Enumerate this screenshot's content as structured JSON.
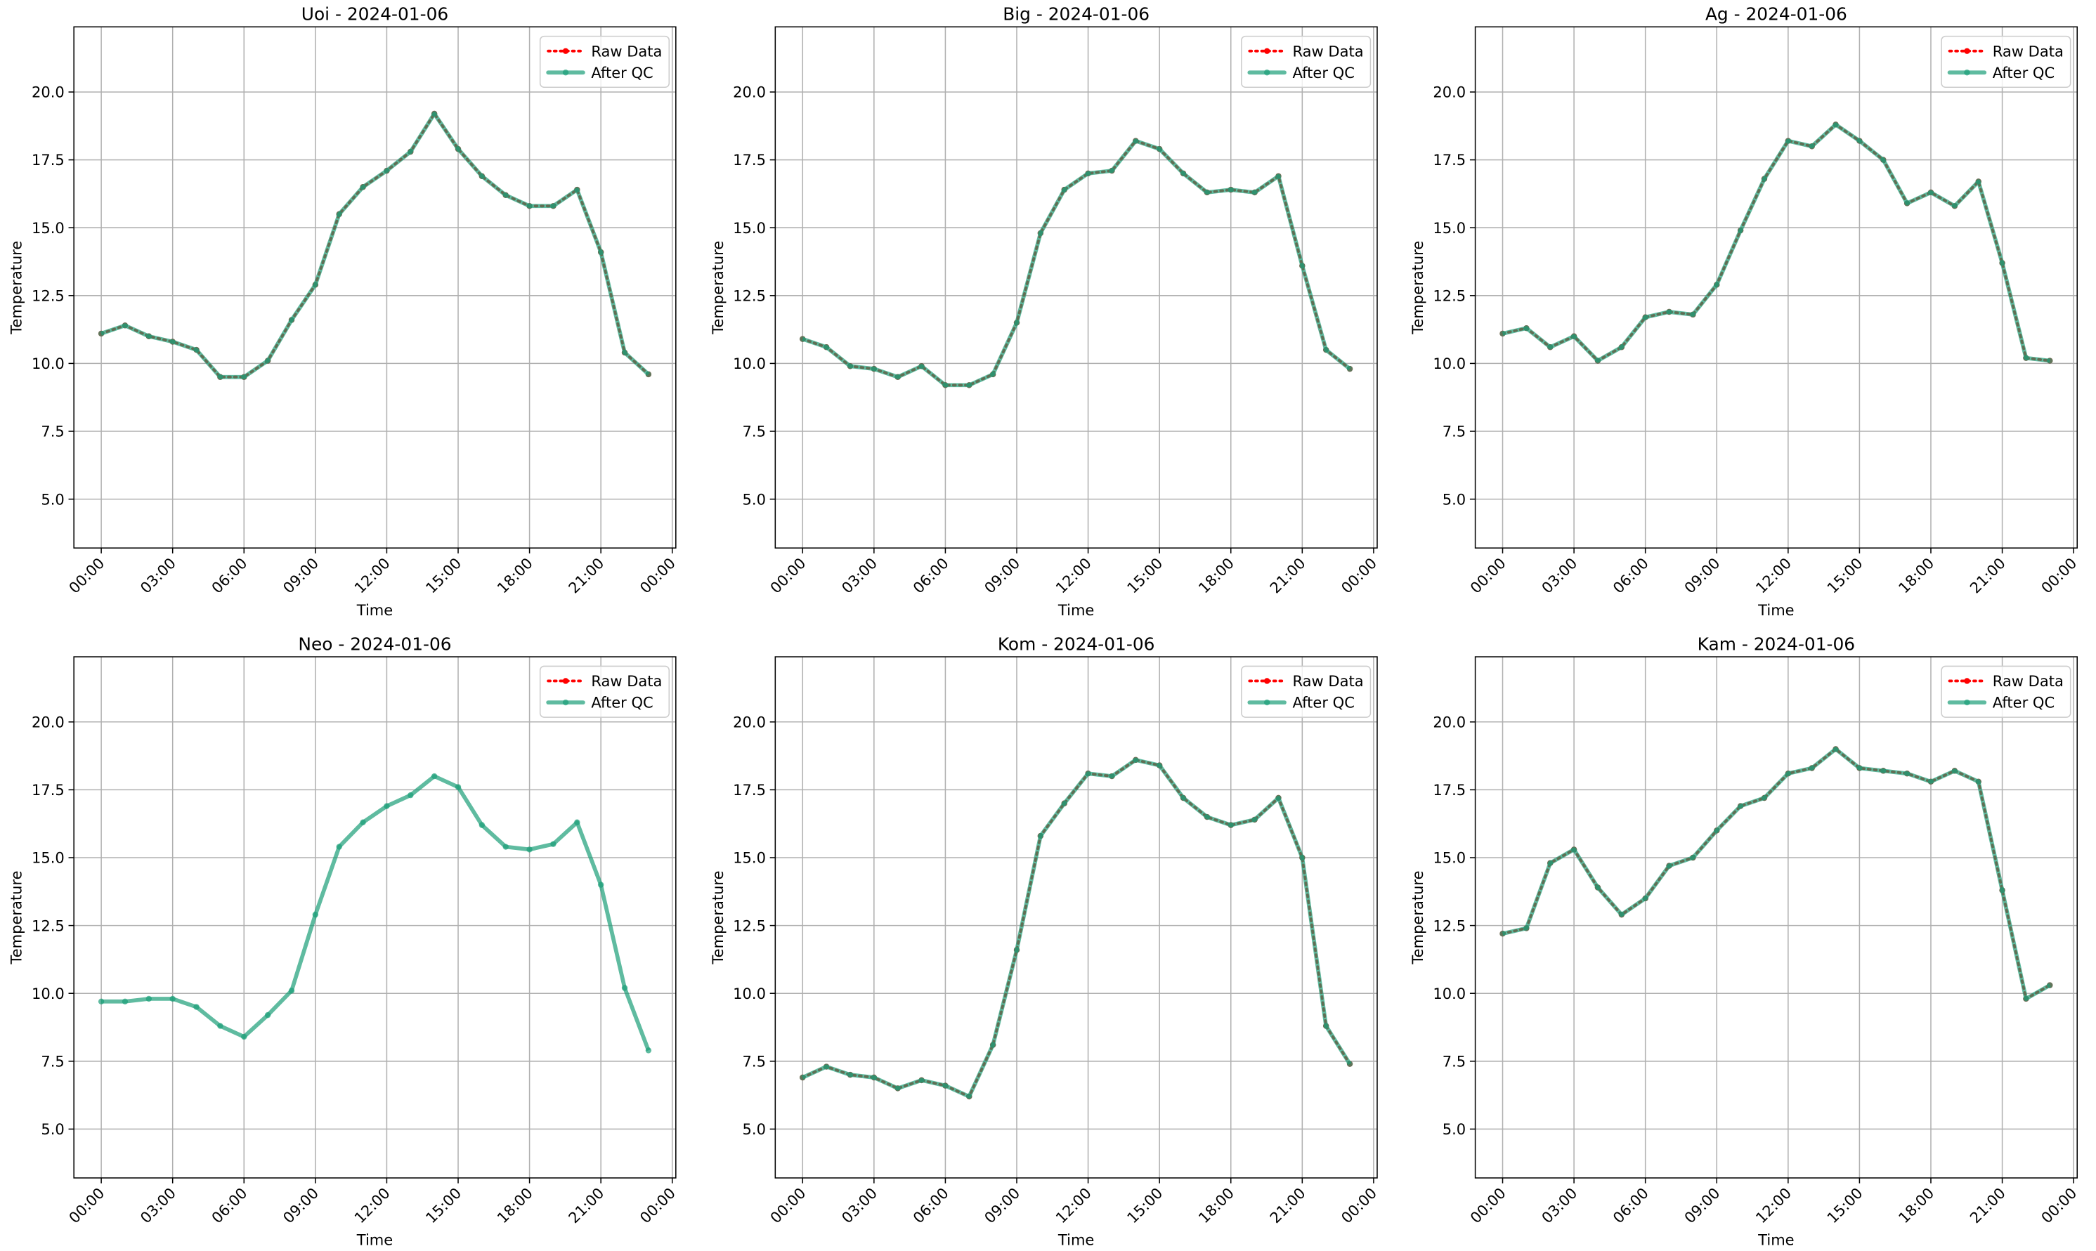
{
  "chart_data": [
    {
      "type": "line",
      "title": "Uoi - 2024-01-06",
      "xlabel": "Time",
      "ylabel": "Temperature",
      "grid": true,
      "legend": "upper right",
      "x": [
        0,
        1,
        2,
        3,
        4,
        5,
        6,
        7,
        8,
        9,
        10,
        11,
        12,
        13,
        14,
        15,
        16,
        17,
        18,
        19,
        20,
        21,
        22,
        23
      ],
      "xlim": [
        -1.15,
        24.15
      ],
      "xticks": [
        {
          "value": 0,
          "label": "00:00"
        },
        {
          "value": 3,
          "label": "03:00"
        },
        {
          "value": 6,
          "label": "06:00"
        },
        {
          "value": 9,
          "label": "09:00"
        },
        {
          "value": 12,
          "label": "12:00"
        },
        {
          "value": 15,
          "label": "15:00"
        },
        {
          "value": 18,
          "label": "18:00"
        },
        {
          "value": 21,
          "label": "21:00"
        },
        {
          "value": 24,
          "label": "00:00"
        }
      ],
      "ylim": [
        3.2,
        22.4
      ],
      "yticks": [
        {
          "value": 5,
          "label": "5.0"
        },
        {
          "value": 7.5,
          "label": "7.5"
        },
        {
          "value": 10,
          "label": "10.0"
        },
        {
          "value": 12.5,
          "label": "12.5"
        },
        {
          "value": 15,
          "label": "15.0"
        },
        {
          "value": 17.5,
          "label": "17.5"
        },
        {
          "value": 20,
          "label": "20.0"
        }
      ],
      "series": [
        {
          "name": "Raw Data",
          "color": "#ff0000",
          "values": [
            11.1,
            11.4,
            11.0,
            10.8,
            10.5,
            9.5,
            9.5,
            10.1,
            11.6,
            12.9,
            15.5,
            16.5,
            17.1,
            17.8,
            19.2,
            17.9,
            16.9,
            16.2,
            15.8,
            15.8,
            16.4,
            14.1,
            10.4,
            9.6
          ]
        },
        {
          "name": "After QC",
          "color": "#1b9e77",
          "values": [
            11.1,
            11.4,
            11.0,
            10.8,
            10.5,
            9.5,
            9.5,
            10.1,
            11.6,
            12.9,
            15.5,
            16.5,
            17.1,
            17.8,
            19.2,
            17.9,
            16.9,
            16.2,
            15.8,
            15.8,
            16.4,
            14.1,
            10.4,
            9.6
          ]
        }
      ]
    },
    {
      "type": "line",
      "title": "Big - 2024-01-06",
      "xlabel": "Time",
      "ylabel": "Temperature",
      "grid": true,
      "legend": "upper right",
      "x": [
        0,
        1,
        2,
        3,
        4,
        5,
        6,
        7,
        8,
        9,
        10,
        11,
        12,
        13,
        14,
        15,
        16,
        17,
        18,
        19,
        20,
        21,
        22,
        23
      ],
      "xlim": [
        -1.15,
        24.15
      ],
      "xticks": [
        {
          "value": 0,
          "label": "00:00"
        },
        {
          "value": 3,
          "label": "03:00"
        },
        {
          "value": 6,
          "label": "06:00"
        },
        {
          "value": 9,
          "label": "09:00"
        },
        {
          "value": 12,
          "label": "12:00"
        },
        {
          "value": 15,
          "label": "15:00"
        },
        {
          "value": 18,
          "label": "18:00"
        },
        {
          "value": 21,
          "label": "21:00"
        },
        {
          "value": 24,
          "label": "00:00"
        }
      ],
      "ylim": [
        3.2,
        22.4
      ],
      "yticks": [
        {
          "value": 5,
          "label": "5.0"
        },
        {
          "value": 7.5,
          "label": "7.5"
        },
        {
          "value": 10,
          "label": "10.0"
        },
        {
          "value": 12.5,
          "label": "12.5"
        },
        {
          "value": 15,
          "label": "15.0"
        },
        {
          "value": 17.5,
          "label": "17.5"
        },
        {
          "value": 20,
          "label": "20.0"
        }
      ],
      "series": [
        {
          "name": "Raw Data",
          "color": "#ff0000",
          "values": [
            10.9,
            10.6,
            9.9,
            9.8,
            9.5,
            9.9,
            9.2,
            9.2,
            9.6,
            11.5,
            14.8,
            16.4,
            17.0,
            17.1,
            18.2,
            17.9,
            17.0,
            16.3,
            16.4,
            16.3,
            16.9,
            13.6,
            10.5,
            9.8
          ]
        },
        {
          "name": "After QC",
          "color": "#1b9e77",
          "values": [
            10.9,
            10.6,
            9.9,
            9.8,
            9.5,
            9.9,
            9.2,
            9.2,
            9.6,
            11.5,
            14.8,
            16.4,
            17.0,
            17.1,
            18.2,
            17.9,
            17.0,
            16.3,
            16.4,
            16.3,
            16.9,
            13.6,
            10.5,
            9.8
          ]
        }
      ]
    },
    {
      "type": "line",
      "title": "Ag - 2024-01-06",
      "xlabel": "Time",
      "ylabel": "Temperature",
      "grid": true,
      "legend": "upper right",
      "x": [
        0,
        1,
        2,
        3,
        4,
        5,
        6,
        7,
        8,
        9,
        10,
        11,
        12,
        13,
        14,
        15,
        16,
        17,
        18,
        19,
        20,
        21,
        22,
        23
      ],
      "xlim": [
        -1.15,
        24.15
      ],
      "xticks": [
        {
          "value": 0,
          "label": "00:00"
        },
        {
          "value": 3,
          "label": "03:00"
        },
        {
          "value": 6,
          "label": "06:00"
        },
        {
          "value": 9,
          "label": "09:00"
        },
        {
          "value": 12,
          "label": "12:00"
        },
        {
          "value": 15,
          "label": "15:00"
        },
        {
          "value": 18,
          "label": "18:00"
        },
        {
          "value": 21,
          "label": "21:00"
        },
        {
          "value": 24,
          "label": "00:00"
        }
      ],
      "ylim": [
        3.2,
        22.4
      ],
      "yticks": [
        {
          "value": 5,
          "label": "5.0"
        },
        {
          "value": 7.5,
          "label": "7.5"
        },
        {
          "value": 10,
          "label": "10.0"
        },
        {
          "value": 12.5,
          "label": "12.5"
        },
        {
          "value": 15,
          "label": "15.0"
        },
        {
          "value": 17.5,
          "label": "17.5"
        },
        {
          "value": 20,
          "label": "20.0"
        }
      ],
      "series": [
        {
          "name": "Raw Data",
          "color": "#ff0000",
          "values": [
            11.1,
            11.3,
            10.6,
            11.0,
            10.1,
            10.6,
            11.7,
            11.9,
            11.8,
            12.9,
            14.9,
            16.8,
            18.2,
            18.0,
            18.8,
            18.2,
            17.5,
            15.9,
            16.3,
            15.8,
            16.7,
            13.7,
            10.2,
            10.1
          ]
        },
        {
          "name": "After QC",
          "color": "#1b9e77",
          "values": [
            11.1,
            11.3,
            10.6,
            11.0,
            10.1,
            10.6,
            11.7,
            11.9,
            11.8,
            12.9,
            14.9,
            16.8,
            18.2,
            18.0,
            18.8,
            18.2,
            17.5,
            15.9,
            16.3,
            15.8,
            16.7,
            13.7,
            10.2,
            10.1
          ]
        }
      ]
    },
    {
      "type": "line",
      "title": "Neo - 2024-01-06",
      "xlabel": "Time",
      "ylabel": "Temperature",
      "grid": true,
      "legend": "upper right",
      "x": [
        0,
        1,
        2,
        3,
        4,
        5,
        6,
        7,
        8,
        9,
        10,
        11,
        12,
        13,
        14,
        15,
        16,
        17,
        18,
        19,
        20,
        21,
        22,
        23
      ],
      "xlim": [
        -1.15,
        24.15
      ],
      "xticks": [
        {
          "value": 0,
          "label": "00:00"
        },
        {
          "value": 3,
          "label": "03:00"
        },
        {
          "value": 6,
          "label": "06:00"
        },
        {
          "value": 9,
          "label": "09:00"
        },
        {
          "value": 12,
          "label": "12:00"
        },
        {
          "value": 15,
          "label": "15:00"
        },
        {
          "value": 18,
          "label": "18:00"
        },
        {
          "value": 21,
          "label": "21:00"
        },
        {
          "value": 24,
          "label": "00:00"
        }
      ],
      "ylim": [
        3.2,
        22.4
      ],
      "yticks": [
        {
          "value": 5,
          "label": "5.0"
        },
        {
          "value": 7.5,
          "label": "7.5"
        },
        {
          "value": 10,
          "label": "10.0"
        },
        {
          "value": 12.5,
          "label": "12.5"
        },
        {
          "value": 15,
          "label": "15.0"
        },
        {
          "value": 17.5,
          "label": "17.5"
        },
        {
          "value": 20,
          "label": "20.0"
        }
      ],
      "series": [
        {
          "name": "Raw Data",
          "color": "#ff0000",
          "values": [
            null,
            null,
            null,
            null,
            null,
            null,
            null,
            null,
            null,
            null,
            null,
            null,
            null,
            null,
            null,
            null,
            null,
            null,
            null,
            null,
            null,
            null,
            null,
            null
          ]
        },
        {
          "name": "After QC",
          "color": "#1b9e77",
          "values": [
            9.7,
            9.7,
            9.8,
            9.8,
            9.5,
            8.8,
            8.4,
            9.2,
            10.1,
            12.9,
            15.4,
            16.3,
            16.9,
            17.3,
            18.0,
            17.6,
            16.2,
            15.4,
            15.3,
            15.5,
            16.3,
            14.0,
            10.2,
            7.9
          ]
        }
      ]
    },
    {
      "type": "line",
      "title": "Kom - 2024-01-06",
      "xlabel": "Time",
      "ylabel": "Temperature",
      "grid": true,
      "legend": "upper right",
      "x": [
        0,
        1,
        2,
        3,
        4,
        5,
        6,
        7,
        8,
        9,
        10,
        11,
        12,
        13,
        14,
        15,
        16,
        17,
        18,
        19,
        20,
        21,
        22,
        23
      ],
      "xlim": [
        -1.15,
        24.15
      ],
      "xticks": [
        {
          "value": 0,
          "label": "00:00"
        },
        {
          "value": 3,
          "label": "03:00"
        },
        {
          "value": 6,
          "label": "06:00"
        },
        {
          "value": 9,
          "label": "09:00"
        },
        {
          "value": 12,
          "label": "12:00"
        },
        {
          "value": 15,
          "label": "15:00"
        },
        {
          "value": 18,
          "label": "18:00"
        },
        {
          "value": 21,
          "label": "21:00"
        },
        {
          "value": 24,
          "label": "00:00"
        }
      ],
      "ylim": [
        3.2,
        22.4
      ],
      "yticks": [
        {
          "value": 5,
          "label": "5.0"
        },
        {
          "value": 7.5,
          "label": "7.5"
        },
        {
          "value": 10,
          "label": "10.0"
        },
        {
          "value": 12.5,
          "label": "12.5"
        },
        {
          "value": 15,
          "label": "15.0"
        },
        {
          "value": 17.5,
          "label": "17.5"
        },
        {
          "value": 20,
          "label": "20.0"
        }
      ],
      "series": [
        {
          "name": "Raw Data",
          "color": "#ff0000",
          "values": [
            6.9,
            7.3,
            7.0,
            6.9,
            6.5,
            6.8,
            6.6,
            6.2,
            8.1,
            11.6,
            15.8,
            17.0,
            18.1,
            18.0,
            18.6,
            18.4,
            17.2,
            16.5,
            16.2,
            16.4,
            17.2,
            15.0,
            8.8,
            7.4
          ]
        },
        {
          "name": "After QC",
          "color": "#1b9e77",
          "values": [
            6.9,
            7.3,
            7.0,
            6.9,
            6.5,
            6.8,
            6.6,
            6.2,
            8.1,
            11.6,
            15.8,
            17.0,
            18.1,
            18.0,
            18.6,
            18.4,
            17.2,
            16.5,
            16.2,
            16.4,
            17.2,
            15.0,
            8.8,
            7.4
          ]
        }
      ]
    },
    {
      "type": "line",
      "title": "Kam - 2024-01-06",
      "xlabel": "Time",
      "ylabel": "Temperature",
      "grid": true,
      "legend": "upper right",
      "x": [
        0,
        1,
        2,
        3,
        4,
        5,
        6,
        7,
        8,
        9,
        10,
        11,
        12,
        13,
        14,
        15,
        16,
        17,
        18,
        19,
        20,
        21,
        22,
        23
      ],
      "xlim": [
        -1.15,
        24.15
      ],
      "xticks": [
        {
          "value": 0,
          "label": "00:00"
        },
        {
          "value": 3,
          "label": "03:00"
        },
        {
          "value": 6,
          "label": "06:00"
        },
        {
          "value": 9,
          "label": "09:00"
        },
        {
          "value": 12,
          "label": "12:00"
        },
        {
          "value": 15,
          "label": "15:00"
        },
        {
          "value": 18,
          "label": "18:00"
        },
        {
          "value": 21,
          "label": "21:00"
        },
        {
          "value": 24,
          "label": "00:00"
        }
      ],
      "ylim": [
        3.2,
        22.4
      ],
      "yticks": [
        {
          "value": 5,
          "label": "5.0"
        },
        {
          "value": 7.5,
          "label": "7.5"
        },
        {
          "value": 10,
          "label": "10.0"
        },
        {
          "value": 12.5,
          "label": "12.5"
        },
        {
          "value": 15,
          "label": "15.0"
        },
        {
          "value": 17.5,
          "label": "17.5"
        },
        {
          "value": 20,
          "label": "20.0"
        }
      ],
      "series": [
        {
          "name": "Raw Data",
          "color": "#ff0000",
          "values": [
            12.2,
            12.4,
            14.8,
            15.3,
            13.9,
            12.9,
            13.5,
            14.7,
            15.0,
            16.0,
            16.9,
            17.2,
            18.1,
            18.3,
            19.0,
            18.3,
            18.2,
            18.1,
            17.8,
            18.2,
            17.8,
            13.8,
            9.8,
            10.3
          ]
        },
        {
          "name": "After QC",
          "color": "#1b9e77",
          "values": [
            12.2,
            12.4,
            14.8,
            15.3,
            13.9,
            12.9,
            13.5,
            14.7,
            15.0,
            16.0,
            16.9,
            17.2,
            18.1,
            18.3,
            19.0,
            18.3,
            18.2,
            18.1,
            17.8,
            18.2,
            17.8,
            13.8,
            9.8,
            10.3
          ]
        }
      ]
    }
  ]
}
